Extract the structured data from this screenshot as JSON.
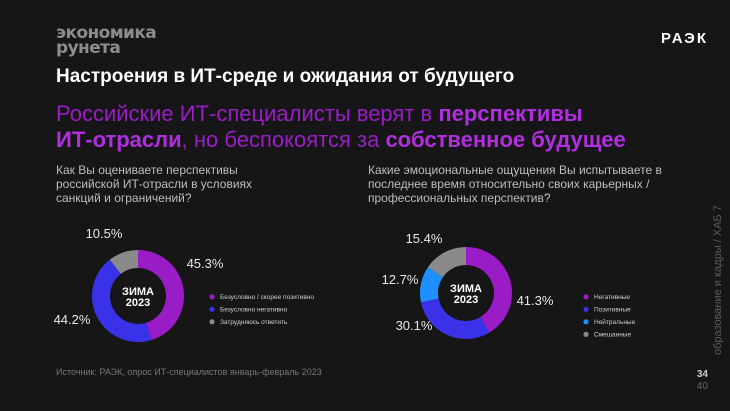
{
  "header": {
    "logo_line1": "экономика",
    "logo_line2": "рунета",
    "brand": "РАЭК"
  },
  "title": "Настроения в ИТ-среде и ожидания от будущего",
  "headline": {
    "p1": "Российские ИТ-специалисты верят в ",
    "b1": "перспективы",
    "b2": "ИТ-отрасли",
    "p2": ", но беспокоятся за ",
    "b3": "собственное будущее"
  },
  "side_text": "образование и кадры / ХАБ 7",
  "source": "Источник: РАЭК, опрос ИТ-специалистов январь-февраль 2023",
  "page": {
    "current": "34",
    "total": "40"
  },
  "colors": {
    "background": "#161616",
    "purple": "#9a1cc6",
    "blue": "#3a32e8",
    "light_blue": "#1e8fff",
    "gray": "#8a8a8a"
  },
  "chart_data": [
    {
      "type": "pie",
      "question": "Как Вы оцениваете перспективы российской ИТ-отрасли в условиях санкций и ограничений?",
      "center_label": [
        "ЗИМА",
        "2023"
      ],
      "slices": [
        {
          "label": "Безусловно / скорее позитивно",
          "value": 45.3,
          "display": "45.3%",
          "color": "#9a1cc6"
        },
        {
          "label": "Безусловно негативно",
          "value": 44.2,
          "display": "44.2%",
          "color": "#3a32e8"
        },
        {
          "label": "Затрудняюсь ответить",
          "value": 10.5,
          "display": "10.5%",
          "color": "#8a8a8a"
        }
      ]
    },
    {
      "type": "pie",
      "question": "Какие эмоциональные ощущения Вы испытываете в последнее время относительно своих карьерных / профессиональных перспектив?",
      "center_label": [
        "ЗИМА",
        "2023"
      ],
      "slices": [
        {
          "label": "Негативные",
          "value": 41.3,
          "display": "41.3%",
          "color": "#9a1cc6"
        },
        {
          "label": "Позитивные",
          "value": 30.1,
          "display": "30.1%",
          "color": "#3a32e8"
        },
        {
          "label": "Нейтральные",
          "value": 12.7,
          "display": "12.7%",
          "color": "#1e8fff"
        },
        {
          "label": "Смешанные",
          "value": 15.4,
          "display": "15.4%",
          "color": "#8a8a8a"
        }
      ]
    }
  ]
}
